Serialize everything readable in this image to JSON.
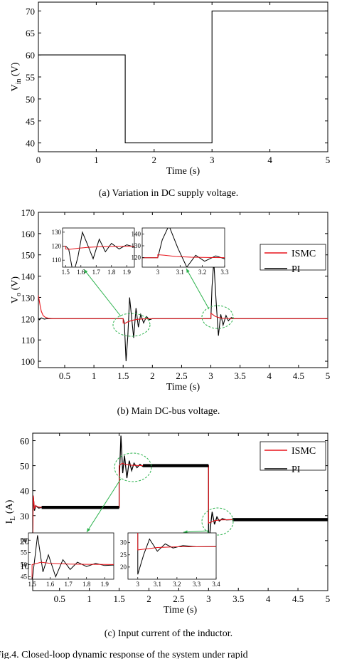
{
  "chart_data": [
    {
      "type": "line",
      "caption": "(a)  Variation in DC supply voltage.",
      "xlabel": "Time (s)",
      "ylabel_main": "V",
      "ylabel_sub": "in",
      "ylabel_unit": " (V)",
      "xlim": [
        0,
        5
      ],
      "ylim": [
        38,
        72
      ],
      "xticks": [
        0,
        1,
        2,
        3,
        4,
        5
      ],
      "yticks": [
        40,
        45,
        50,
        55,
        60,
        65,
        70
      ],
      "series": [
        {
          "color": "#000000",
          "x": [
            0,
            1.5,
            1.5,
            3.0,
            3.0,
            5.0
          ],
          "y": [
            60,
            60,
            40,
            40,
            70,
            70
          ]
        }
      ]
    },
    {
      "type": "line",
      "caption": "(b)  Main DC-bus voltage.",
      "xlabel": "Time (s)",
      "ylabel_main": "V",
      "ylabel_sub": "o",
      "ylabel_unit": " (V)",
      "xlim": [
        0.05,
        5
      ],
      "ylim": [
        97,
        170
      ],
      "xticks": [
        0.5,
        1,
        1.5,
        2,
        2.5,
        3,
        3.5,
        4,
        4.5,
        5
      ],
      "yticks": [
        100,
        110,
        120,
        130,
        140,
        150,
        160,
        170
      ],
      "legend": [
        "ISMC",
        "PI"
      ],
      "series": [
        {
          "name": "ISMC",
          "color": "#e8141b",
          "x": [
            0.05,
            0.08,
            0.1,
            0.13,
            0.17,
            0.22,
            0.3,
            1.5,
            1.5,
            1.53,
            1.58,
            1.65,
            1.75,
            1.85,
            2.0,
            3.0,
            3.0,
            3.03,
            3.08,
            3.15,
            3.25,
            3.4,
            5.0
          ],
          "y": [
            131,
            126,
            123.5,
            121.5,
            120.6,
            120.2,
            120,
            120,
            118,
            117.8,
            118.5,
            119.2,
            119.7,
            119.9,
            120,
            120,
            122.5,
            122,
            121,
            120.4,
            120.1,
            120,
            120
          ]
        },
        {
          "name": "PI",
          "color": "#000000",
          "x": [
            0.05,
            0.07,
            0.1,
            0.15,
            0.2,
            1.5,
            1.52,
            1.55,
            1.58,
            1.61,
            1.64,
            1.68,
            1.72,
            1.76,
            1.8,
            1.85,
            1.9,
            1.95,
            2.0,
            3.0,
            3.02,
            3.05,
            3.09,
            3.13,
            3.17,
            3.21,
            3.26,
            3.3,
            3.35,
            3.4,
            5.0
          ],
          "y": [
            120,
            119.5,
            120.4,
            119.8,
            120,
            120,
            118,
            100,
            112,
            130,
            122,
            111,
            125,
            116,
            122,
            118,
            121,
            119.5,
            120,
            120,
            135,
            147,
            128,
            112,
            122,
            117,
            121.5,
            119,
            120.5,
            120,
            120
          ]
        }
      ],
      "insets": [
        {
          "xlim": [
            1.48,
            1.95
          ],
          "ylim": [
            105,
            133
          ],
          "xticks": [
            1.5,
            1.6,
            1.7,
            1.8,
            1.9
          ],
          "yticks": [
            110,
            120,
            130
          ]
        },
        {
          "xlim": [
            2.93,
            3.3
          ],
          "ylim": [
            112,
            145
          ],
          "xticks": [
            3,
            3.1,
            3.2,
            3.3
          ],
          "yticks": [
            120,
            130,
            140
          ]
        }
      ]
    },
    {
      "type": "line",
      "caption": "(c)  Input current of the inductor.",
      "xlabel": "Time (s)",
      "ylabel_main": "I",
      "ylabel_sub": "L",
      "ylabel_unit": " (A)",
      "xlim": [
        0.05,
        5
      ],
      "ylim": [
        0,
        63
      ],
      "xticks": [
        0.5,
        1,
        1.5,
        2,
        2.5,
        3,
        3.5,
        4,
        4.5,
        5
      ],
      "yticks": [
        10,
        20,
        30,
        40,
        50,
        60
      ],
      "legend": [
        "ISMC",
        "PI"
      ],
      "series": [
        {
          "name": "ISMC",
          "color": "#e8141b",
          "x": [
            0.05,
            0.06,
            0.08,
            0.1,
            0.14,
            0.2,
            1.5,
            1.5,
            1.55,
            1.6,
            1.7,
            1.8,
            2.0,
            3.0,
            3.0,
            3.05,
            3.1,
            3.2,
            3.4,
            5.0
          ],
          "y": [
            22,
            38,
            33,
            34,
            33.5,
            33.3,
            33.3,
            50,
            51,
            50.5,
            50.2,
            50.1,
            50,
            50,
            27,
            27.5,
            28,
            28.3,
            28.4,
            28.4
          ]
        },
        {
          "name": "PI",
          "color": "#000000",
          "x": [
            0.05,
            0.06,
            0.08,
            0.1,
            0.15,
            0.2,
            1.5,
            1.5,
            1.53,
            1.56,
            1.59,
            1.63,
            1.67,
            1.71,
            1.75,
            1.8,
            1.85,
            1.9,
            2.0,
            3.0,
            3.0,
            3.03,
            3.06,
            3.1,
            3.14,
            3.18,
            3.23,
            3.3,
            3.4,
            5.0
          ],
          "y": [
            23,
            38,
            32,
            34,
            33,
            33.3,
            33.3,
            43,
            62,
            47,
            54,
            45,
            52,
            48,
            51,
            49.2,
            50.5,
            49.6,
            50,
            50,
            17,
            25,
            31.5,
            26.5,
            29.5,
            27.8,
            28.8,
            28.3,
            28.4,
            28.4
          ]
        }
      ],
      "insets": [
        {
          "xlim": [
            1.48,
            1.95
          ],
          "ylim": [
            44,
            63
          ],
          "xticks": [
            1.5,
            1.6,
            1.7,
            1.8,
            1.9
          ],
          "yticks": [
            45,
            50,
            55,
            60
          ]
        },
        {
          "xlim": [
            2.95,
            3.4
          ],
          "ylim": [
            15,
            34
          ],
          "xticks": [
            3,
            3.1,
            3.2,
            3.3,
            3.4
          ],
          "yticks": [
            20,
            25,
            30
          ]
        }
      ]
    }
  ],
  "footer": "Fig.4. Closed-loop dynamic response of the system under rapid"
}
